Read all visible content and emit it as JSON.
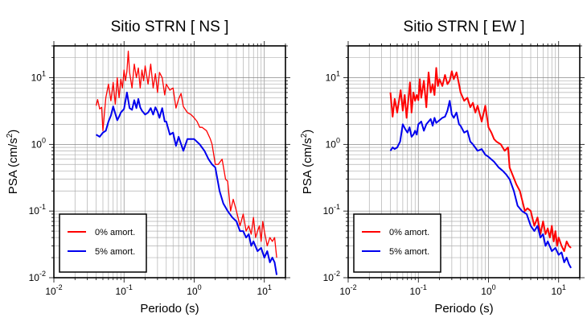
{
  "chart_data": [
    {
      "type": "line",
      "title": "Sitio STRN [ NS ]",
      "xlabel": "Periodo (s)",
      "ylabel_main": "PSA (cm/s",
      "ylabel_sup": "2",
      "ylabel_close": ")",
      "x_scale": "log",
      "y_scale": "log",
      "xlim": [
        0.01,
        20
      ],
      "ylim": [
        0.01,
        30
      ],
      "x_ticks": [
        {
          "value": 0.01,
          "base": "10",
          "exp": "-2"
        },
        {
          "value": 0.1,
          "base": "10",
          "exp": "-1"
        },
        {
          "value": 1,
          "base": "10",
          "exp": "0"
        },
        {
          "value": 10,
          "base": "10",
          "exp": "1"
        }
      ],
      "y_ticks": [
        {
          "value": 0.01,
          "base": "10",
          "exp": "-2"
        },
        {
          "value": 0.1,
          "base": "10",
          "exp": "-1"
        },
        {
          "value": 1,
          "base": "10",
          "exp": "0"
        },
        {
          "value": 10,
          "base": "10",
          "exp": "1"
        }
      ],
      "grid": true,
      "legend_position": "bottom-left",
      "series": [
        {
          "name": "0% amort.",
          "color": "#ff0000",
          "x": [
            0.04,
            0.042,
            0.045,
            0.048,
            0.05,
            0.055,
            0.06,
            0.065,
            0.07,
            0.075,
            0.08,
            0.085,
            0.09,
            0.095,
            0.1,
            0.105,
            0.11,
            0.115,
            0.12,
            0.13,
            0.14,
            0.15,
            0.16,
            0.17,
            0.18,
            0.19,
            0.2,
            0.22,
            0.24,
            0.26,
            0.28,
            0.3,
            0.32,
            0.35,
            0.38,
            0.4,
            0.45,
            0.5,
            0.55,
            0.6,
            0.65,
            0.7,
            0.8,
            0.9,
            1.0,
            1.1,
            1.2,
            1.3,
            1.5,
            1.7,
            1.8,
            2.0,
            2.2,
            2.5,
            2.8,
            3.0,
            3.3,
            3.6,
            4.0,
            4.5,
            5.0,
            5.5,
            6.0,
            6.5,
            7.0,
            7.5,
            8.0,
            8.5,
            9.0,
            9.5,
            10.0,
            11.0,
            12.0,
            13.0,
            14.0,
            15.0
          ],
          "y": [
            3.8,
            4.7,
            3.4,
            3.6,
            1.6,
            5.0,
            8.0,
            4.5,
            8.5,
            4.0,
            10.0,
            5.0,
            9.5,
            7.0,
            13.0,
            9.0,
            12.5,
            25.0,
            12.0,
            7.0,
            16.0,
            10.0,
            14.0,
            7.0,
            13.0,
            9.0,
            15.0,
            8.0,
            16.0,
            7.0,
            11.5,
            6.0,
            12.0,
            10.0,
            5.5,
            8.0,
            6.5,
            7.0,
            3.5,
            4.8,
            5.8,
            3.7,
            3.0,
            2.8,
            2.5,
            2.2,
            1.8,
            1.8,
            1.6,
            1.2,
            1.0,
            0.5,
            0.5,
            0.6,
            0.3,
            0.28,
            0.1,
            0.15,
            0.1,
            0.06,
            0.09,
            0.05,
            0.06,
            0.045,
            0.08,
            0.04,
            0.05,
            0.06,
            0.035,
            0.07,
            0.05,
            0.03,
            0.04,
            0.035,
            0.04,
            0.02
          ]
        },
        {
          "name": "5% amort.",
          "color": "#0000ee",
          "x": [
            0.04,
            0.045,
            0.05,
            0.055,
            0.06,
            0.065,
            0.07,
            0.075,
            0.08,
            0.085,
            0.09,
            0.1,
            0.11,
            0.12,
            0.13,
            0.14,
            0.15,
            0.16,
            0.17,
            0.18,
            0.2,
            0.22,
            0.24,
            0.26,
            0.28,
            0.3,
            0.32,
            0.35,
            0.38,
            0.4,
            0.45,
            0.5,
            0.55,
            0.6,
            0.7,
            0.8,
            0.9,
            1.0,
            1.2,
            1.4,
            1.6,
            1.8,
            2.0,
            2.3,
            2.6,
            3.0,
            3.5,
            4.0,
            4.5,
            5.0,
            5.5,
            6.0,
            6.5,
            7.0,
            8.0,
            9.0,
            10.0,
            11.0,
            12.0,
            13.0,
            14.0,
            15.0
          ],
          "y": [
            1.4,
            1.3,
            1.5,
            1.6,
            2.2,
            2.7,
            3.7,
            2.9,
            2.3,
            2.6,
            3.0,
            3.4,
            6.0,
            3.5,
            3.3,
            4.6,
            3.5,
            4.8,
            3.6,
            3.2,
            2.8,
            3.0,
            3.5,
            2.8,
            3.6,
            3.1,
            2.5,
            3.5,
            2.2,
            2.2,
            1.4,
            1.5,
            0.95,
            1.3,
            0.8,
            1.2,
            1.2,
            1.2,
            1.0,
            0.8,
            0.6,
            0.5,
            0.45,
            0.2,
            0.13,
            0.1,
            0.08,
            0.07,
            0.05,
            0.05,
            0.04,
            0.045,
            0.03,
            0.035,
            0.025,
            0.028,
            0.02,
            0.025,
            0.017,
            0.02,
            0.017,
            0.011
          ]
        }
      ]
    },
    {
      "type": "line",
      "title": "Sitio STRN [ EW ]",
      "xlabel": "Periodo (s)",
      "ylabel_main": "PSA (cm/s",
      "ylabel_sup": "2",
      "ylabel_close": ")",
      "x_scale": "log",
      "y_scale": "log",
      "xlim": [
        0.01,
        20
      ],
      "ylim": [
        0.01,
        30
      ],
      "x_ticks": [
        {
          "value": 0.01,
          "base": "10",
          "exp": "-2"
        },
        {
          "value": 0.1,
          "base": "10",
          "exp": "-1"
        },
        {
          "value": 1,
          "base": "10",
          "exp": "0"
        },
        {
          "value": 10,
          "base": "10",
          "exp": "1"
        }
      ],
      "y_ticks": [
        {
          "value": 0.01,
          "base": "10",
          "exp": "-2"
        },
        {
          "value": 0.1,
          "base": "10",
          "exp": "-1"
        },
        {
          "value": 1,
          "base": "10",
          "exp": "0"
        },
        {
          "value": 10,
          "base": "10",
          "exp": "1"
        }
      ],
      "grid": true,
      "legend_position": "bottom-left",
      "series": [
        {
          "name": "0% amort.",
          "color": "#ff0000",
          "x": [
            0.04,
            0.043,
            0.046,
            0.05,
            0.053,
            0.056,
            0.06,
            0.064,
            0.068,
            0.072,
            0.076,
            0.08,
            0.085,
            0.09,
            0.095,
            0.1,
            0.105,
            0.11,
            0.12,
            0.13,
            0.14,
            0.15,
            0.16,
            0.17,
            0.18,
            0.19,
            0.2,
            0.22,
            0.24,
            0.26,
            0.28,
            0.3,
            0.32,
            0.35,
            0.38,
            0.4,
            0.45,
            0.5,
            0.55,
            0.6,
            0.65,
            0.7,
            0.8,
            0.9,
            1.0,
            1.1,
            1.2,
            1.3,
            1.5,
            1.7,
            1.9,
            2.0,
            2.2,
            2.5,
            2.8,
            3.0,
            3.3,
            3.6,
            4.0,
            4.5,
            5.0,
            5.5,
            6.0,
            6.5,
            7.0,
            7.5,
            8.0,
            8.5,
            9.0,
            9.5,
            10.0,
            11.0,
            12.0,
            13.0,
            14.0,
            15.0
          ],
          "y": [
            6.0,
            2.6,
            4.8,
            3.0,
            4.5,
            6.5,
            3.2,
            5.5,
            2.5,
            4.6,
            8.5,
            3.0,
            6.0,
            4.5,
            5.5,
            4.6,
            9.5,
            5.0,
            9.0,
            3.6,
            12.0,
            6.0,
            8.0,
            5.5,
            14.0,
            7.5,
            9.5,
            7.5,
            11.0,
            8.0,
            9.0,
            12.5,
            9.5,
            12.0,
            8.0,
            6.0,
            4.5,
            5.0,
            3.6,
            4.2,
            3.0,
            3.8,
            2.2,
            3.8,
            1.8,
            1.5,
            1.2,
            1.1,
            1.0,
            0.8,
            0.9,
            0.45,
            0.35,
            0.25,
            0.2,
            0.15,
            0.1,
            0.11,
            0.1,
            0.06,
            0.08,
            0.045,
            0.07,
            0.045,
            0.055,
            0.04,
            0.06,
            0.035,
            0.05,
            0.03,
            0.04,
            0.03,
            0.025,
            0.035,
            0.03,
            0.028
          ]
        },
        {
          "name": "5% amort.",
          "color": "#0000ee",
          "x": [
            0.04,
            0.043,
            0.046,
            0.05,
            0.055,
            0.06,
            0.065,
            0.07,
            0.075,
            0.08,
            0.085,
            0.09,
            0.095,
            0.1,
            0.11,
            0.12,
            0.13,
            0.14,
            0.15,
            0.16,
            0.17,
            0.18,
            0.2,
            0.22,
            0.24,
            0.26,
            0.28,
            0.3,
            0.32,
            0.35,
            0.38,
            0.4,
            0.45,
            0.5,
            0.55,
            0.6,
            0.7,
            0.8,
            0.9,
            1.0,
            1.2,
            1.4,
            1.6,
            1.8,
            2.0,
            2.3,
            2.6,
            3.0,
            3.5,
            4.0,
            4.5,
            5.0,
            5.5,
            6.0,
            6.5,
            7.0,
            8.0,
            9.0,
            10.0,
            11.0,
            12.0,
            13.0,
            14.0,
            15.0
          ],
          "y": [
            0.8,
            0.9,
            0.85,
            0.9,
            1.1,
            2.0,
            1.7,
            1.5,
            1.8,
            1.3,
            1.4,
            1.6,
            1.4,
            2.0,
            2.2,
            1.6,
            2.0,
            2.2,
            2.4,
            1.9,
            2.5,
            2.1,
            2.3,
            2.5,
            2.6,
            3.2,
            4.5,
            2.8,
            2.5,
            3.0,
            2.0,
            1.9,
            1.5,
            1.6,
            1.1,
            1.0,
            0.8,
            0.85,
            0.7,
            0.65,
            0.55,
            0.45,
            0.4,
            0.35,
            0.3,
            0.2,
            0.12,
            0.1,
            0.09,
            0.06,
            0.05,
            0.06,
            0.04,
            0.045,
            0.03,
            0.035,
            0.025,
            0.028,
            0.022,
            0.024,
            0.017,
            0.02,
            0.016,
            0.014
          ]
        }
      ]
    }
  ]
}
